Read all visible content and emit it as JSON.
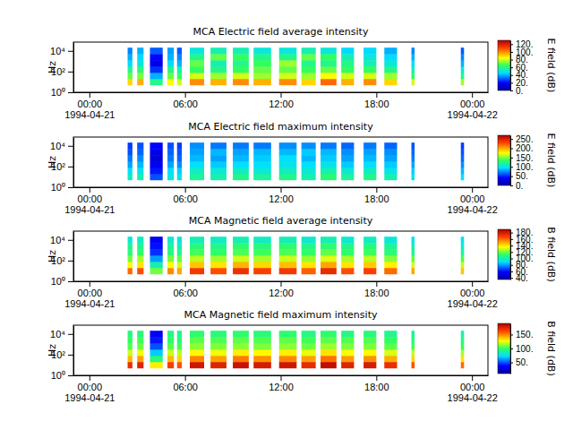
{
  "chart_data": [
    {
      "type": "heatmap",
      "title": "MCA  Electric field average intensity",
      "y_label": "Hz",
      "log": "y",
      "xlim": [
        "1994-04-20T23:00",
        "1994-04-22T01:00"
      ],
      "xticks": [
        {
          "value": "1994-04-21T00:00",
          "label": "00:00\n1994-04-21"
        },
        {
          "value": "1994-04-21T06:00",
          "label": "06:00"
        },
        {
          "value": "1994-04-21T12:00",
          "label": "12:00"
        },
        {
          "value": "1994-04-21T18:00",
          "label": "18:00"
        },
        {
          "value": "1994-04-22T00:00",
          "label": "00:00\n1994-04-22"
        }
      ],
      "ylim": [
        1,
        70000
      ],
      "yticks": [
        {
          "value": 1,
          "label": "10⁰"
        },
        {
          "value": 100,
          "label": "10²"
        },
        {
          "value": 10000,
          "label": "10⁴"
        }
      ],
      "x_start": [
        "1994-04-21T02:24",
        "1994-04-21T03:00",
        "1994-04-21T03:48",
        "1994-04-21T04:54",
        "1994-04-21T05:30",
        "1994-04-21T06:18",
        "1994-04-21T07:36",
        "1994-04-21T09:00",
        "1994-04-21T10:18",
        "1994-04-21T11:54",
        "1994-04-21T13:18",
        "1994-04-21T14:30",
        "1994-04-21T15:48",
        "1994-04-21T17:12",
        "1994-04-21T18:30",
        "1994-04-21T20:12",
        "1994-04-21T23:18"
      ],
      "x_end": [
        "1994-04-21T02:42",
        "1994-04-21T03:24",
        "1994-04-21T04:36",
        "1994-04-21T05:18",
        "1994-04-21T05:48",
        "1994-04-21T07:12",
        "1994-04-21T08:36",
        "1994-04-21T10:00",
        "1994-04-21T11:24",
        "1994-04-21T13:00",
        "1994-04-21T14:12",
        "1994-04-21T15:30",
        "1994-04-21T16:36",
        "1994-04-21T18:00",
        "1994-04-21T19:18",
        "1994-04-21T20:24",
        "1994-04-21T23:30"
      ],
      "y_edges": [
        5,
        20,
        80,
        320,
        1280,
        5120,
        20480
      ],
      "values": [
        [
          90,
          70,
          60,
          45,
          40,
          35
        ],
        [
          95,
          72,
          62,
          50,
          45,
          40
        ],
        [
          60,
          40,
          25,
          15,
          20,
          30
        ],
        [
          85,
          70,
          60,
          45,
          40,
          38
        ],
        [
          80,
          65,
          55,
          40,
          35,
          30
        ],
        [
          100,
          80,
          65,
          70,
          60,
          50
        ],
        [
          95,
          75,
          60,
          55,
          70,
          55
        ],
        [
          100,
          80,
          65,
          60,
          65,
          55
        ],
        [
          95,
          75,
          70,
          65,
          60,
          50
        ],
        [
          100,
          80,
          70,
          75,
          60,
          50
        ],
        [
          90,
          75,
          65,
          60,
          70,
          55
        ],
        [
          105,
          85,
          70,
          60,
          65,
          50
        ],
        [
          95,
          80,
          65,
          60,
          55,
          45
        ],
        [
          100,
          80,
          65,
          55,
          50,
          45
        ],
        [
          90,
          75,
          60,
          50,
          45,
          40
        ],
        [
          80,
          65,
          55,
          45,
          40,
          35
        ],
        [
          75,
          60,
          50,
          40,
          35,
          30
        ]
      ],
      "colorbar": {
        "label": "E field (dB)",
        "range": [
          0,
          130
        ],
        "ticks": [
          {
            "value": 0,
            "label": "0."
          },
          {
            "value": 20,
            "label": "20."
          },
          {
            "value": 40,
            "label": "40."
          },
          {
            "value": 60,
            "label": "60."
          },
          {
            "value": 80,
            "label": "80."
          },
          {
            "value": 100,
            "label": "100."
          },
          {
            "value": 120,
            "label": "120."
          }
        ]
      }
    },
    {
      "type": "heatmap",
      "title": "MCA  Electric field maximum intensity",
      "y_label": "Hz",
      "log": "y",
      "xlim": [
        "1994-04-20T23:00",
        "1994-04-22T01:00"
      ],
      "xticks": [
        {
          "value": "1994-04-21T00:00",
          "label": "00:00\n1994-04-21"
        },
        {
          "value": "1994-04-21T06:00",
          "label": "06:00"
        },
        {
          "value": "1994-04-21T12:00",
          "label": "12:00"
        },
        {
          "value": "1994-04-21T18:00",
          "label": "18:00"
        },
        {
          "value": "1994-04-22T00:00",
          "label": "00:00\n1994-04-22"
        }
      ],
      "ylim": [
        1,
        70000
      ],
      "yticks": [
        {
          "value": 1,
          "label": "10⁰"
        },
        {
          "value": 100,
          "label": "10²"
        },
        {
          "value": 10000,
          "label": "10⁴"
        }
      ],
      "x_start": [
        "1994-04-21T02:24",
        "1994-04-21T03:00",
        "1994-04-21T03:48",
        "1994-04-21T04:54",
        "1994-04-21T05:30",
        "1994-04-21T06:18",
        "1994-04-21T07:36",
        "1994-04-21T09:00",
        "1994-04-21T10:18",
        "1994-04-21T11:54",
        "1994-04-21T13:18",
        "1994-04-21T14:30",
        "1994-04-21T15:48",
        "1994-04-21T17:12",
        "1994-04-21T18:30",
        "1994-04-21T20:12",
        "1994-04-21T23:18"
      ],
      "x_end": [
        "1994-04-21T02:42",
        "1994-04-21T03:24",
        "1994-04-21T04:36",
        "1994-04-21T05:18",
        "1994-04-21T05:48",
        "1994-04-21T07:12",
        "1994-04-21T08:36",
        "1994-04-21T10:00",
        "1994-04-21T11:24",
        "1994-04-21T13:00",
        "1994-04-21T14:12",
        "1994-04-21T15:30",
        "1994-04-21T16:36",
        "1994-04-21T18:00",
        "1994-04-21T19:18",
        "1994-04-21T20:24",
        "1994-04-21T23:30"
      ],
      "y_edges": [
        5,
        20,
        80,
        320,
        1280,
        5120,
        20480
      ],
      "values": [
        [
          110,
          95,
          80,
          70,
          60,
          55
        ],
        [
          115,
          100,
          85,
          75,
          65,
          60
        ],
        [
          60,
          45,
          35,
          25,
          30,
          40
        ],
        [
          105,
          95,
          80,
          70,
          65,
          60
        ],
        [
          100,
          90,
          75,
          65,
          60,
          55
        ],
        [
          120,
          110,
          95,
          85,
          80,
          75
        ],
        [
          115,
          105,
          90,
          80,
          85,
          70
        ],
        [
          125,
          110,
          95,
          85,
          80,
          70
        ],
        [
          120,
          105,
          95,
          90,
          85,
          70
        ],
        [
          125,
          110,
          100,
          95,
          85,
          75
        ],
        [
          115,
          105,
          95,
          85,
          90,
          75
        ],
        [
          130,
          115,
          100,
          90,
          85,
          70
        ],
        [
          120,
          105,
          90,
          80,
          75,
          65
        ],
        [
          125,
          110,
          95,
          85,
          80,
          70
        ],
        [
          115,
          100,
          90,
          80,
          75,
          65
        ],
        [
          100,
          90,
          80,
          70,
          65,
          60
        ],
        [
          95,
          85,
          75,
          65,
          60,
          55
        ]
      ],
      "colorbar": {
        "label": "E field (dB)",
        "range": [
          0,
          270
        ],
        "ticks": [
          {
            "value": 0,
            "label": "0."
          },
          {
            "value": 50,
            "label": "50."
          },
          {
            "value": 100,
            "label": "100."
          },
          {
            "value": 150,
            "label": "150."
          },
          {
            "value": 200,
            "label": "200."
          },
          {
            "value": 250,
            "label": "250."
          }
        ]
      }
    },
    {
      "type": "heatmap",
      "title": "MCA  Magnetic field average intensity",
      "y_label": "Hz",
      "log": "y",
      "xlim": [
        "1994-04-20T23:00",
        "1994-04-22T01:00"
      ],
      "xticks": [
        {
          "value": "1994-04-21T00:00",
          "label": "00:00\n1994-04-21"
        },
        {
          "value": "1994-04-21T06:00",
          "label": "06:00"
        },
        {
          "value": "1994-04-21T12:00",
          "label": "12:00"
        },
        {
          "value": "1994-04-21T18:00",
          "label": "18:00"
        },
        {
          "value": "1994-04-22T00:00",
          "label": "00:00\n1994-04-22"
        }
      ],
      "ylim": [
        1,
        70000
      ],
      "yticks": [
        {
          "value": 1,
          "label": "10⁰"
        },
        {
          "value": 100,
          "label": "10²"
        },
        {
          "value": 10000,
          "label": "10⁴"
        }
      ],
      "x_start": [
        "1994-04-21T02:24",
        "1994-04-21T03:00",
        "1994-04-21T03:48",
        "1994-04-21T04:54",
        "1994-04-21T05:30",
        "1994-04-21T06:18",
        "1994-04-21T07:36",
        "1994-04-21T09:00",
        "1994-04-21T10:18",
        "1994-04-21T11:54",
        "1994-04-21T13:18",
        "1994-04-21T14:30",
        "1994-04-21T15:48",
        "1994-04-21T17:12",
        "1994-04-21T18:30",
        "1994-04-21T20:12",
        "1994-04-21T23:18"
      ],
      "x_end": [
        "1994-04-21T02:42",
        "1994-04-21T03:24",
        "1994-04-21T04:36",
        "1994-04-21T05:18",
        "1994-04-21T05:48",
        "1994-04-21T07:12",
        "1994-04-21T08:36",
        "1994-04-21T10:00",
        "1994-04-21T11:24",
        "1994-04-21T13:00",
        "1994-04-21T14:12",
        "1994-04-21T15:30",
        "1994-04-21T16:36",
        "1994-04-21T18:00",
        "1994-04-21T19:18",
        "1994-04-21T20:24",
        "1994-04-21T23:30"
      ],
      "y_edges": [
        5,
        20,
        80,
        320,
        1280,
        5120,
        20480
      ],
      "values": [
        [
          160,
          135,
          120,
          110,
          105,
          95
        ],
        [
          165,
          140,
          125,
          112,
          105,
          98
        ],
        [
          120,
          100,
          80,
          65,
          60,
          55
        ],
        [
          155,
          135,
          120,
          108,
          104,
          96
        ],
        [
          150,
          130,
          118,
          106,
          100,
          94
        ],
        [
          170,
          145,
          128,
          115,
          108,
          100
        ],
        [
          165,
          140,
          125,
          112,
          106,
          98
        ],
        [
          172,
          148,
          130,
          116,
          110,
          100
        ],
        [
          168,
          142,
          126,
          114,
          108,
          98
        ],
        [
          170,
          146,
          130,
          116,
          110,
          100
        ],
        [
          162,
          140,
          124,
          112,
          106,
          96
        ],
        [
          174,
          150,
          132,
          118,
          110,
          100
        ],
        [
          165,
          140,
          126,
          112,
          106,
          96
        ],
        [
          168,
          144,
          128,
          114,
          108,
          98
        ],
        [
          160,
          138,
          122,
          110,
          104,
          95
        ],
        [
          150,
          130,
          118,
          106,
          100,
          92
        ],
        [
          145,
          128,
          115,
          104,
          98,
          90
        ]
      ],
      "colorbar": {
        "label": "B field (dB)",
        "range": [
          35,
          190
        ],
        "ticks": [
          {
            "value": 40,
            "label": "40."
          },
          {
            "value": 60,
            "label": "60."
          },
          {
            "value": 80,
            "label": "80."
          },
          {
            "value": 100,
            "label": "100."
          },
          {
            "value": 120,
            "label": "120."
          },
          {
            "value": 140,
            "label": "140."
          },
          {
            "value": 160,
            "label": "160."
          },
          {
            "value": 180,
            "label": "180."
          }
        ]
      }
    },
    {
      "type": "heatmap",
      "title": "MCA  Magnetic field maximum intensity",
      "y_label": "Hz",
      "log": "y",
      "xlim": [
        "1994-04-20T23:00",
        "1994-04-22T01:00"
      ],
      "xticks": [
        {
          "value": "1994-04-21T00:00",
          "label": "00:00\n1994-04-21"
        },
        {
          "value": "1994-04-21T06:00",
          "label": "06:00"
        },
        {
          "value": "1994-04-21T12:00",
          "label": "12:00"
        },
        {
          "value": "1994-04-21T18:00",
          "label": "18:00"
        },
        {
          "value": "1994-04-22T00:00",
          "label": "00:00\n1994-04-22"
        }
      ],
      "ylim": [
        1,
        70000
      ],
      "yticks": [
        {
          "value": 1,
          "label": "10⁰"
        },
        {
          "value": 100,
          "label": "10²"
        },
        {
          "value": 10000,
          "label": "10⁴"
        }
      ],
      "x_start": [
        "1994-04-21T02:24",
        "1994-04-21T03:00",
        "1994-04-21T03:48",
        "1994-04-21T04:54",
        "1994-04-21T05:30",
        "1994-04-21T06:18",
        "1994-04-21T07:36",
        "1994-04-21T09:00",
        "1994-04-21T10:18",
        "1994-04-21T11:54",
        "1994-04-21T13:18",
        "1994-04-21T14:30",
        "1994-04-21T15:48",
        "1994-04-21T17:12",
        "1994-04-21T18:30",
        "1994-04-21T20:12",
        "1994-04-21T23:18"
      ],
      "x_end": [
        "1994-04-21T02:42",
        "1994-04-21T03:24",
        "1994-04-21T04:36",
        "1994-04-21T05:18",
        "1994-04-21T05:48",
        "1994-04-21T07:12",
        "1994-04-21T08:36",
        "1994-04-21T10:00",
        "1994-04-21T11:24",
        "1994-04-21T13:00",
        "1994-04-21T14:12",
        "1994-04-21T15:30",
        "1994-04-21T16:36",
        "1994-04-21T18:00",
        "1994-04-21T19:18",
        "1994-04-21T20:24",
        "1994-04-21T23:30"
      ],
      "y_edges": [
        5,
        20,
        80,
        320,
        1280,
        5120,
        20480
      ],
      "values": [
        [
          170,
          140,
          120,
          105,
          100,
          95
        ],
        [
          175,
          145,
          125,
          108,
          102,
          96
        ],
        [
          130,
          95,
          70,
          50,
          40,
          35
        ],
        [
          165,
          140,
          120,
          105,
          98,
          94
        ],
        [
          160,
          135,
          118,
          102,
          96,
          92
        ],
        [
          180,
          150,
          128,
          112,
          106,
          98
        ],
        [
          175,
          145,
          125,
          110,
          104,
          96
        ],
        [
          182,
          152,
          130,
          112,
          106,
          98
        ],
        [
          178,
          148,
          128,
          110,
          104,
          96
        ],
        [
          180,
          150,
          130,
          112,
          106,
          98
        ],
        [
          172,
          145,
          124,
          108,
          102,
          94
        ],
        [
          184,
          154,
          132,
          114,
          106,
          98
        ],
        [
          175,
          146,
          126,
          110,
          104,
          94
        ],
        [
          178,
          148,
          128,
          110,
          104,
          96
        ],
        [
          170,
          142,
          122,
          106,
          100,
          92
        ],
        [
          160,
          135,
          118,
          102,
          96,
          90
        ],
        [
          155,
          132,
          115,
          100,
          94,
          88
        ]
      ],
      "colorbar": {
        "label": "B field (dB)",
        "range": [
          10,
          190
        ],
        "ticks": [
          {
            "value": 50,
            "label": "50."
          },
          {
            "value": 100,
            "label": "100."
          },
          {
            "value": 150,
            "label": "150."
          }
        ]
      }
    }
  ]
}
